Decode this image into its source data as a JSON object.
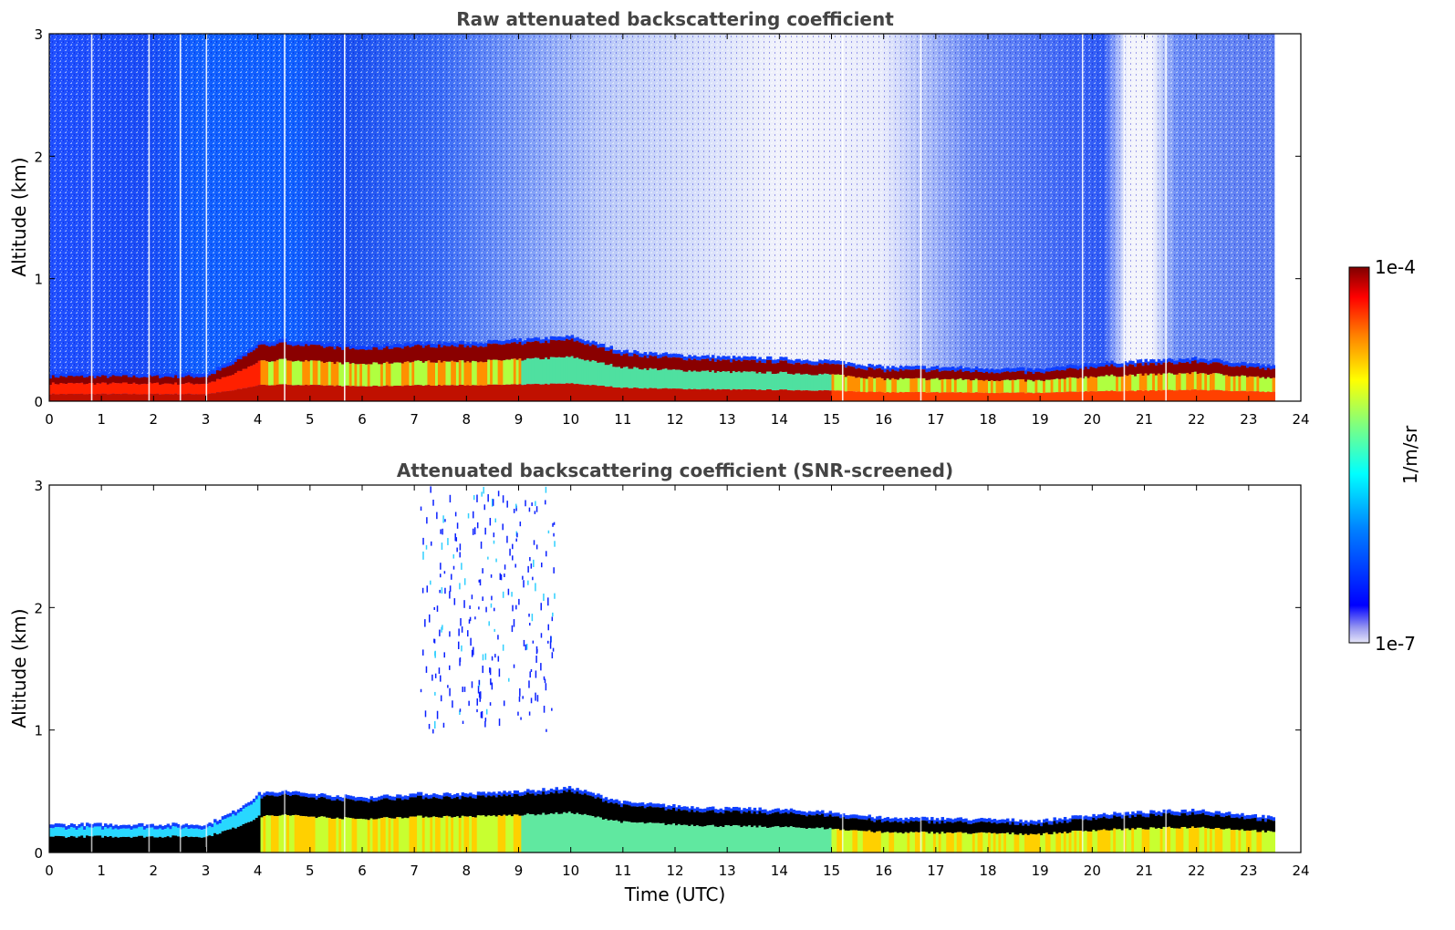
{
  "chart_data": [
    {
      "type": "heatmap",
      "title": "Raw attenuated backscattering coefficient",
      "xlabel": "",
      "ylabel": "Altitude (km)",
      "xlim": [
        0,
        24
      ],
      "ylim": [
        0,
        3
      ],
      "xticks": [
        "0",
        "1",
        "2",
        "3",
        "4",
        "5",
        "6",
        "7",
        "8",
        "9",
        "10",
        "11",
        "12",
        "13",
        "14",
        "15",
        "16",
        "17",
        "18",
        "19",
        "20",
        "21",
        "22",
        "23",
        "24"
      ],
      "yticks": [
        "0",
        "1",
        "2",
        "3"
      ],
      "data_time_range_utc": [
        0,
        23.5
      ],
      "layer_top_km": {
        "time": [
          0,
          1,
          2,
          3,
          3.5,
          4,
          4.5,
          5,
          6,
          7,
          8,
          9,
          10,
          11,
          12,
          13,
          14,
          15,
          16,
          17,
          18,
          19,
          20,
          21,
          22,
          23,
          23.5
        ],
        "height": [
          0.2,
          0.2,
          0.2,
          0.2,
          0.3,
          0.45,
          0.47,
          0.45,
          0.42,
          0.45,
          0.45,
          0.47,
          0.5,
          0.38,
          0.35,
          0.33,
          0.32,
          0.3,
          0.25,
          0.25,
          0.24,
          0.23,
          0.28,
          0.3,
          0.32,
          0.28,
          0.25
        ]
      },
      "colorbar": {
        "min_label": "1e-7",
        "max_label": "1e-4",
        "unit": "1/m/sr",
        "scale": "log"
      }
    },
    {
      "type": "heatmap",
      "title": "Attenuated backscattering coefficient (SNR-screened)",
      "xlabel": "Time (UTC)",
      "ylabel": "Altitude (km)",
      "xlim": [
        0,
        24
      ],
      "ylim": [
        0,
        3
      ],
      "xticks": [
        "0",
        "1",
        "2",
        "3",
        "4",
        "5",
        "6",
        "7",
        "8",
        "9",
        "10",
        "11",
        "12",
        "13",
        "14",
        "15",
        "16",
        "17",
        "18",
        "19",
        "20",
        "21",
        "22",
        "23",
        "24"
      ],
      "yticks": [
        "0",
        "1",
        "2",
        "3"
      ],
      "data_time_range_utc": [
        0,
        23.5
      ],
      "layer_top_km": {
        "time": [
          0,
          1,
          2,
          3,
          3.5,
          4,
          4.5,
          5,
          6,
          7,
          8,
          9,
          10,
          11,
          12,
          13,
          14,
          15,
          16,
          17,
          18,
          19,
          20,
          21,
          22,
          23,
          23.5
        ],
        "height": [
          0.2,
          0.2,
          0.2,
          0.2,
          0.3,
          0.45,
          0.47,
          0.45,
          0.42,
          0.45,
          0.45,
          0.47,
          0.5,
          0.38,
          0.35,
          0.33,
          0.32,
          0.3,
          0.25,
          0.25,
          0.24,
          0.23,
          0.28,
          0.3,
          0.32,
          0.28,
          0.25
        ]
      },
      "colorbar": {
        "min_label": "1e-7",
        "max_label": "1e-4",
        "unit": "1/m/sr",
        "scale": "log"
      }
    }
  ],
  "colors": {
    "jet": [
      "#00007f",
      "#0000ff",
      "#007fff",
      "#00ffff",
      "#7fff7f",
      "#ffff00",
      "#ff7f00",
      "#ff0000",
      "#7f0000"
    ],
    "low": "#e4e6f6",
    "title": "#444444"
  }
}
